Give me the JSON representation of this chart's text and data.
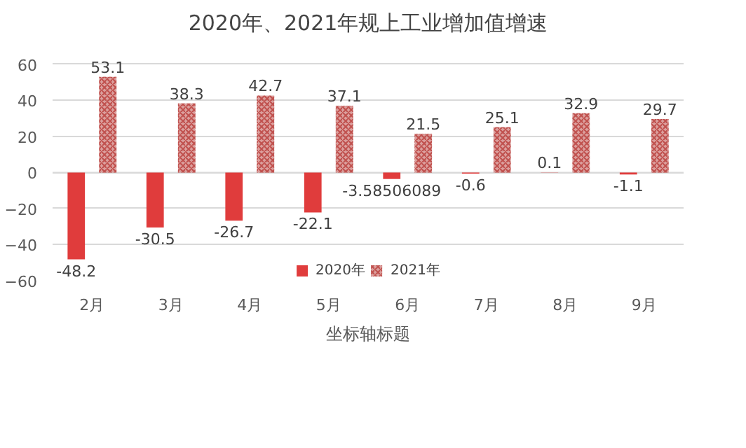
{
  "chart_data": {
    "type": "bar",
    "title": "2020年、2021年规上工业增加值增速",
    "xlabel": "坐标轴标题",
    "categories": [
      "2月",
      "3月",
      "4月",
      "5月",
      "6月",
      "7月",
      "8月",
      "9月"
    ],
    "series": [
      {
        "name": "2020年",
        "color": "#e03c3c",
        "values": [
          -48.2,
          -30.5,
          -26.7,
          -22.1,
          -3.58506089,
          -0.6,
          0.1,
          -1.1
        ]
      },
      {
        "name": "2021年",
        "color": "#c0504d",
        "values": [
          53.1,
          38.3,
          42.7,
          37.1,
          21.5,
          25.1,
          32.9,
          29.7
        ]
      }
    ],
    "ylim": [
      -60,
      60
    ],
    "yticks": [
      -60,
      -40,
      -20,
      0,
      20,
      40,
      60
    ],
    "grid": "y",
    "data_labels": true,
    "legend": "bottom"
  }
}
